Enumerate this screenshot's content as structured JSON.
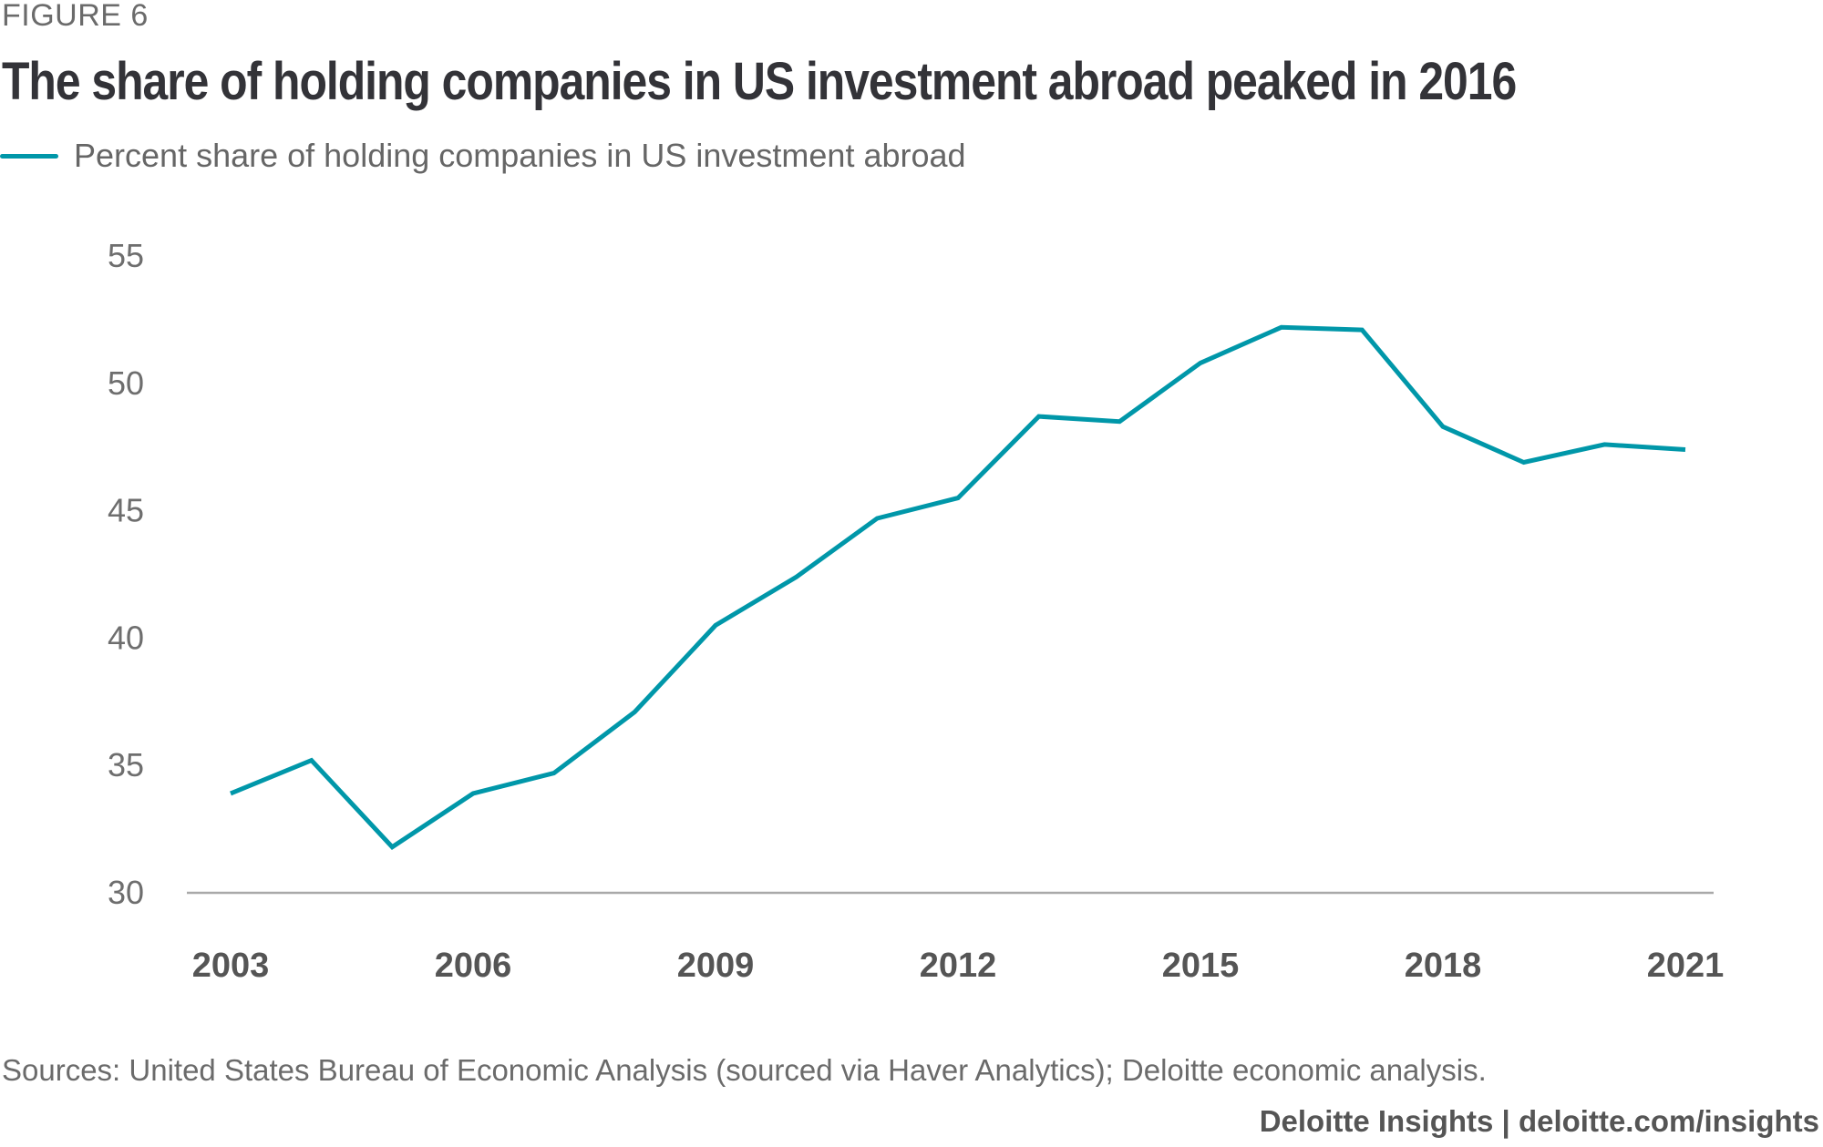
{
  "figure_label": "FIGURE 6",
  "title": "The share of holding companies in US investment abroad peaked in 2016",
  "legend": {
    "label": "Percent share of holding companies in US investment abroad",
    "color": "#0097A9"
  },
  "footer": {
    "sources": "Sources: United States Bureau of Economic Analysis (sourced via Haver Analytics); Deloitte economic analysis.",
    "credit": "Deloitte Insights | deloitte.com/insights"
  },
  "chart_data": {
    "type": "line",
    "title": "The share of holding companies in US investment abroad peaked in 2016",
    "xlabel": "",
    "ylabel": "",
    "x": [
      2003,
      2004,
      2005,
      2006,
      2007,
      2008,
      2009,
      2010,
      2011,
      2012,
      2013,
      2014,
      2015,
      2016,
      2017,
      2018,
      2019,
      2020,
      2021
    ],
    "series": [
      {
        "name": "Percent share of holding companies in US investment abroad",
        "color": "#0097A9",
        "values": [
          33.9,
          35.2,
          31.8,
          33.9,
          34.7,
          37.1,
          40.5,
          42.4,
          44.7,
          45.5,
          48.7,
          48.5,
          50.8,
          52.2,
          52.1,
          48.3,
          46.9,
          47.6,
          47.4
        ]
      }
    ],
    "xticks": [
      "2003",
      "2006",
      "2009",
      "2012",
      "2015",
      "2018",
      "2021"
    ],
    "yticks": [
      "30",
      "35",
      "40",
      "45",
      "50",
      "55"
    ],
    "ylim": [
      30,
      55
    ],
    "xlim": [
      2003,
      2021
    ],
    "grid": false,
    "legend_position": "top-left"
  }
}
